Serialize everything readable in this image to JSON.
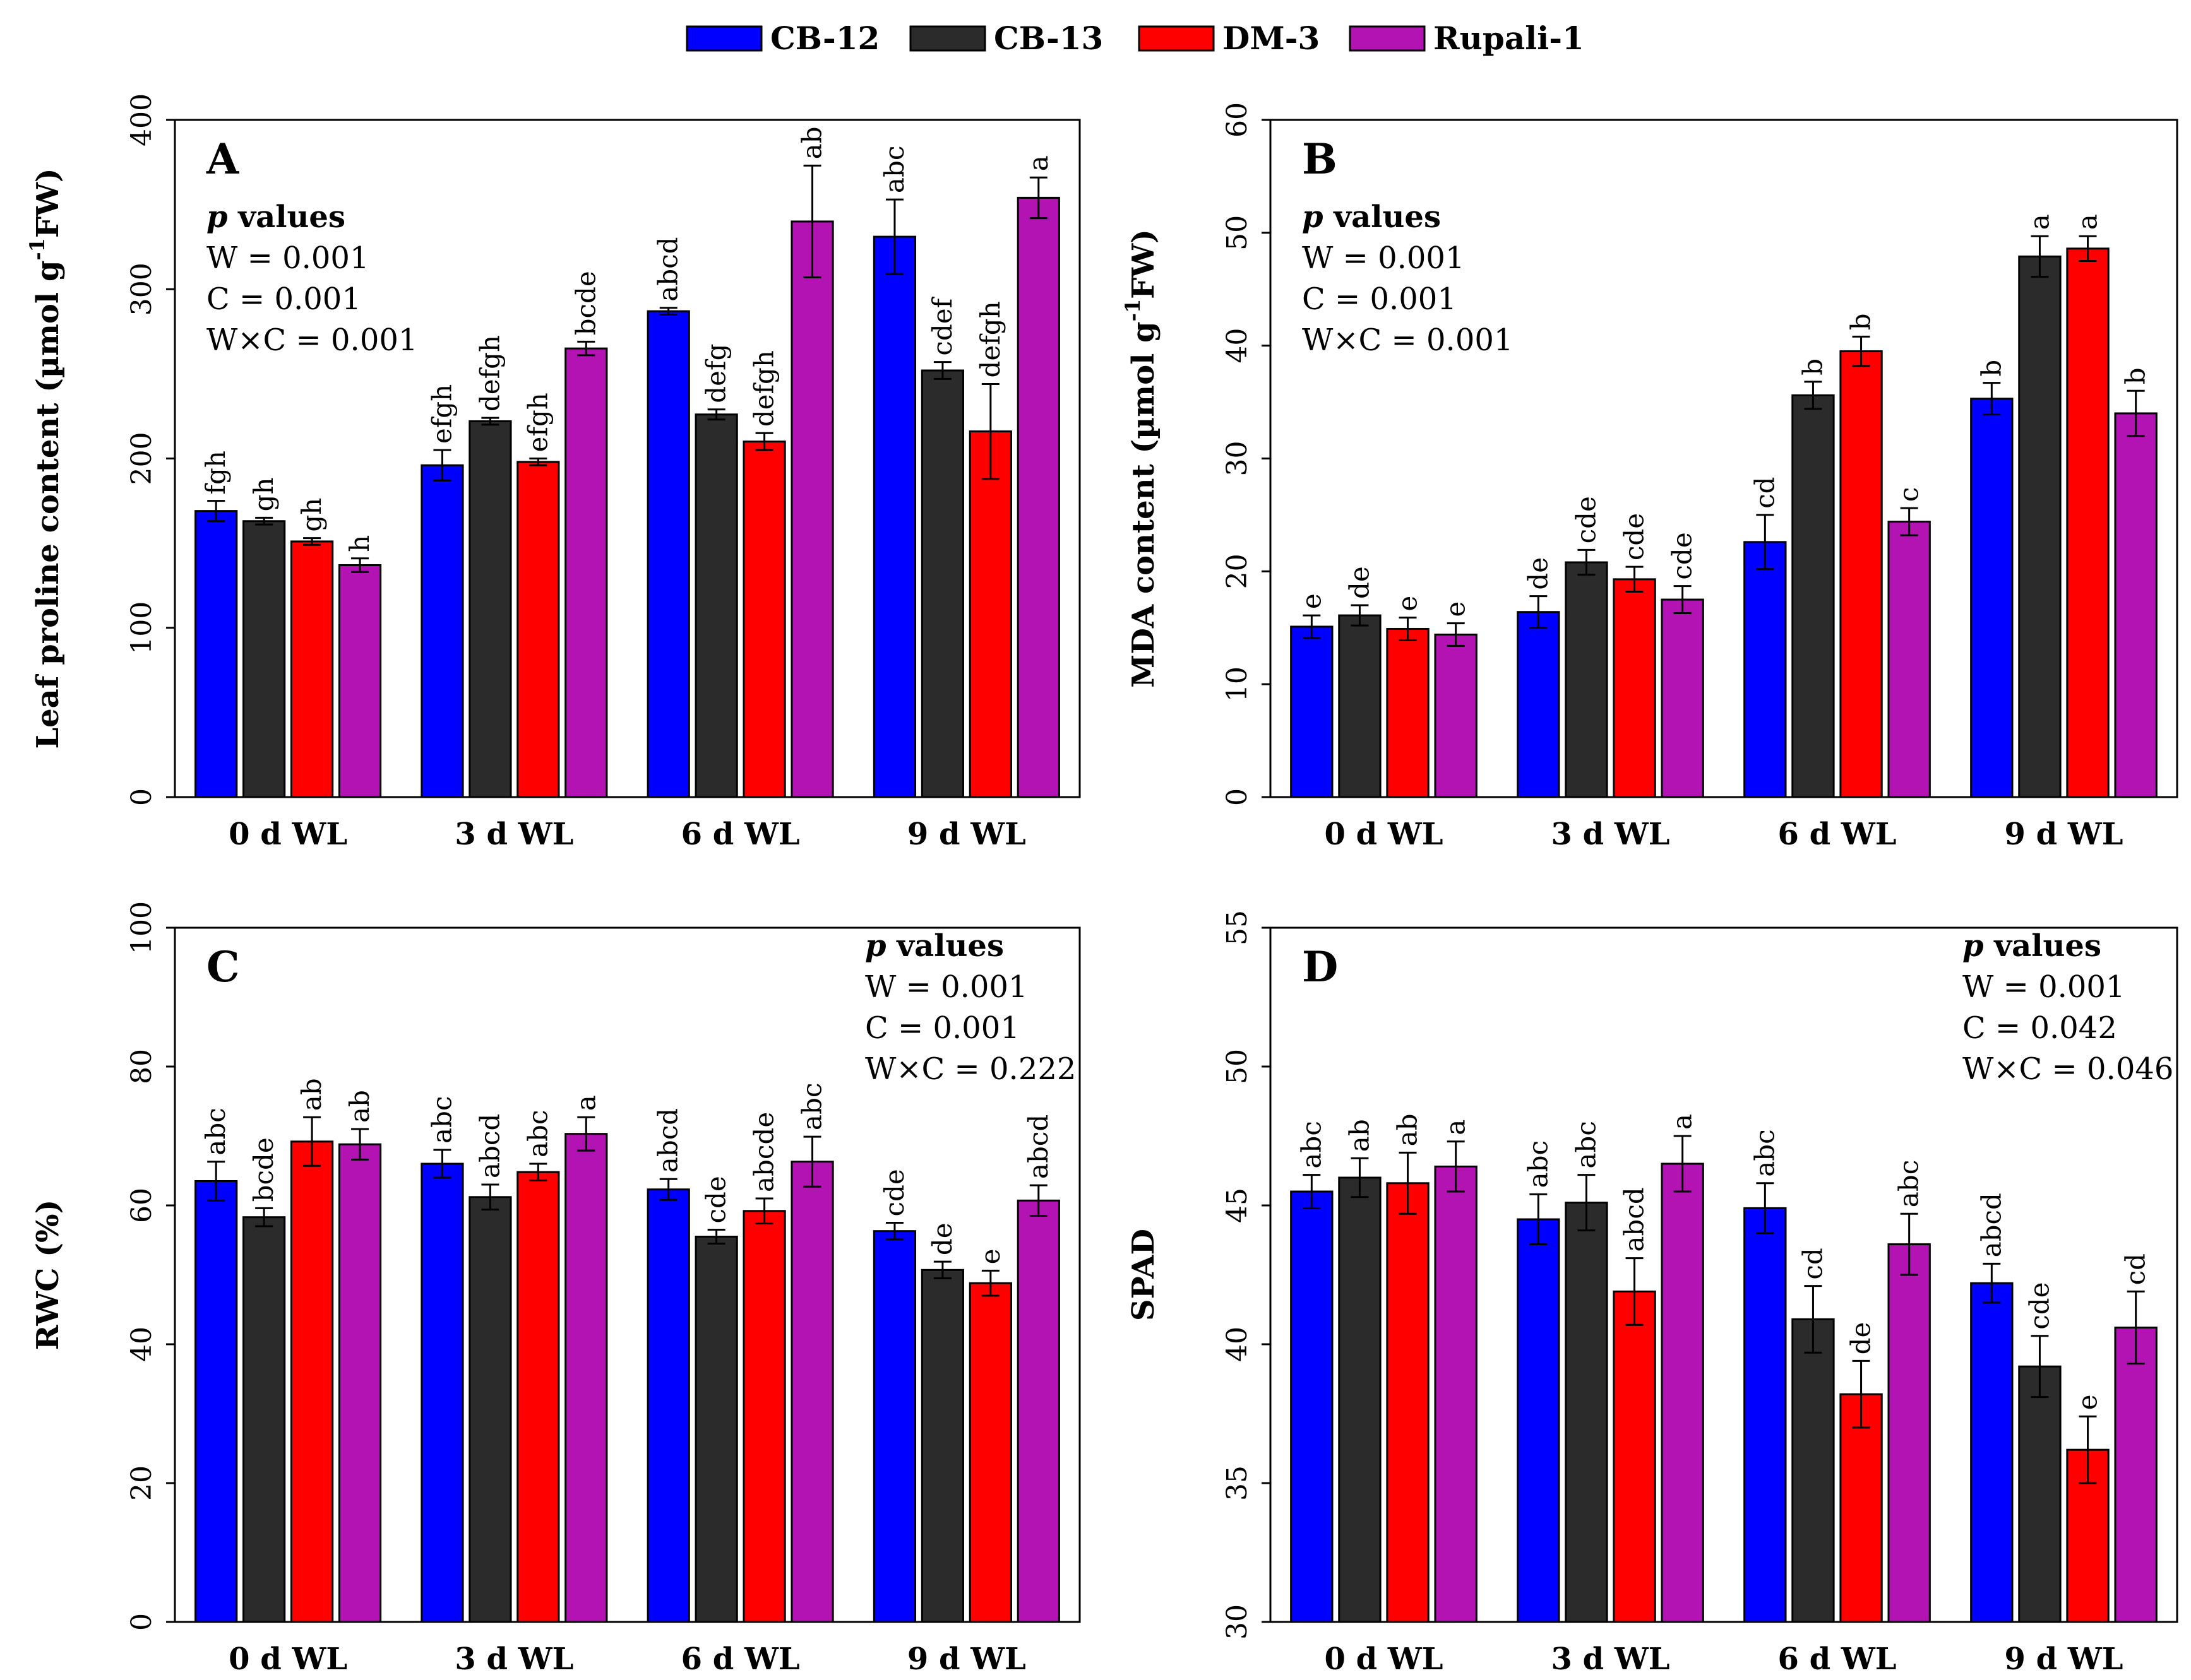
{
  "legend": [
    {
      "name": "CB-12",
      "color": "#0000ff"
    },
    {
      "name": "CB-13",
      "color": "#2b2b2b"
    },
    {
      "name": "DM-3",
      "color": "#ff0000"
    },
    {
      "name": "Rupali-1",
      "color": "#b313b3"
    }
  ],
  "chart_data": [
    {
      "type": "bar",
      "panel": "A",
      "ylabel": "Leaf proline content (µmol g",
      "ylabel_sup": "-1",
      "ylabel_tail": "FW)",
      "ylim": [
        0,
        400
      ],
      "yticks": [
        0,
        100,
        200,
        300,
        400
      ],
      "categories": [
        "0 d WL",
        "3 d WL",
        "6 d WL",
        "9 d WL"
      ],
      "series": [
        {
          "name": "CB-12",
          "values": [
            169,
            196,
            287,
            331
          ],
          "errors": [
            6,
            9,
            2,
            22
          ],
          "letters": [
            "fgh",
            "efgh",
            "abcd",
            "abc"
          ]
        },
        {
          "name": "CB-13",
          "values": [
            163,
            222,
            226,
            252
          ],
          "errors": [
            2,
            2,
            3,
            5
          ],
          "letters": [
            "gh",
            "defgh",
            "defg",
            "cdef"
          ]
        },
        {
          "name": "DM-3",
          "values": [
            151,
            198,
            210,
            216
          ],
          "errors": [
            2,
            2,
            5,
            28
          ],
          "letters": [
            "gh",
            "efgh",
            "defgh",
            "defgh"
          ]
        },
        {
          "name": "Rupali-1",
          "values": [
            137,
            265,
            340,
            354
          ],
          "errors": [
            4,
            4,
            33,
            12
          ],
          "letters": [
            "h",
            "bcde",
            "ab",
            "a"
          ]
        }
      ],
      "stats": {
        "heading_italic": "p",
        "heading_rest": " values",
        "lines": [
          "W = 0.001",
          "C = 0.001",
          "W×C = 0.001"
        ],
        "placement": "top-left"
      }
    },
    {
      "type": "bar",
      "panel": "B",
      "ylabel": "MDA content (µmol g",
      "ylabel_sup": "-1",
      "ylabel_tail": "FW)",
      "ylim": [
        0,
        60
      ],
      "yticks": [
        0,
        10,
        20,
        30,
        40,
        50,
        60
      ],
      "categories": [
        "0 d WL",
        "3 d WL",
        "6 d WL",
        "9 d WL"
      ],
      "series": [
        {
          "name": "CB-12",
          "values": [
            15.1,
            16.4,
            22.6,
            35.3
          ],
          "errors": [
            1.0,
            1.4,
            2.4,
            1.4
          ],
          "letters": [
            "e",
            "de",
            "cd",
            "b"
          ]
        },
        {
          "name": "CB-13",
          "values": [
            16.1,
            20.8,
            35.6,
            47.9
          ],
          "errors": [
            0.9,
            1.1,
            1.2,
            1.8
          ],
          "letters": [
            "de",
            "cde",
            "b",
            "a"
          ]
        },
        {
          "name": "DM-3",
          "values": [
            14.9,
            19.3,
            39.5,
            48.6
          ],
          "errors": [
            1.0,
            1.1,
            1.3,
            1.1
          ],
          "letters": [
            "e",
            "cde",
            "b",
            "a"
          ]
        },
        {
          "name": "Rupali-1",
          "values": [
            14.4,
            17.5,
            24.4,
            34.0
          ],
          "errors": [
            1.0,
            1.2,
            1.2,
            2.0
          ],
          "letters": [
            "e",
            "cde",
            "c",
            "b"
          ]
        }
      ],
      "stats": {
        "heading_italic": "p",
        "heading_rest": " values",
        "lines": [
          "W = 0.001",
          "C = 0.001",
          "W×C = 0.001"
        ],
        "placement": "top-left"
      }
    },
    {
      "type": "bar",
      "panel": "C",
      "ylabel": "RWC (%)",
      "ylabel_sup": "",
      "ylabel_tail": "",
      "ylim": [
        0,
        100
      ],
      "yticks": [
        0,
        20,
        40,
        60,
        80,
        100
      ],
      "categories": [
        "0 d WL",
        "3 d WL",
        "6 d WL",
        "9 d WL"
      ],
      "series": [
        {
          "name": "CB-12",
          "values": [
            63.5,
            66.0,
            62.3,
            56.3
          ],
          "errors": [
            2.8,
            2.0,
            1.5,
            1.2
          ],
          "letters": [
            "abc",
            "abc",
            "abcd",
            "cde"
          ]
        },
        {
          "name": "CB-13",
          "values": [
            58.3,
            61.2,
            55.5,
            50.7
          ],
          "errors": [
            1.3,
            1.8,
            1.0,
            1.2
          ],
          "letters": [
            "bcde",
            "abcd",
            "cde",
            "de"
          ]
        },
        {
          "name": "DM-3",
          "values": [
            69.2,
            64.8,
            59.2,
            48.8
          ],
          "errors": [
            3.5,
            1.2,
            1.8,
            1.8
          ],
          "letters": [
            "ab",
            "abc",
            "abcde",
            "e"
          ]
        },
        {
          "name": "Rupali-1",
          "values": [
            68.8,
            70.3,
            66.3,
            60.7
          ],
          "errors": [
            2.2,
            2.4,
            3.6,
            2.2
          ],
          "letters": [
            "ab",
            "a",
            "abc",
            "abcd"
          ]
        }
      ],
      "stats": {
        "heading_italic": "p",
        "heading_rest": " values",
        "lines": [
          "W = 0.001",
          "C = 0.001",
          "W×C = 0.222"
        ],
        "placement": "top-right"
      }
    },
    {
      "type": "bar",
      "panel": "D",
      "ylabel": "SPAD",
      "ylabel_sup": "",
      "ylabel_tail": "",
      "ylim": [
        30,
        55
      ],
      "yticks": [
        30,
        35,
        40,
        45,
        50,
        55
      ],
      "categories": [
        "0 d WL",
        "3 d WL",
        "6 d WL",
        "9 d WL"
      ],
      "series": [
        {
          "name": "CB-12",
          "values": [
            45.5,
            44.5,
            44.9,
            42.2
          ],
          "errors": [
            0.6,
            0.9,
            0.9,
            0.7
          ],
          "letters": [
            "abc",
            "abc",
            "abc",
            "abcd"
          ]
        },
        {
          "name": "CB-13",
          "values": [
            46.0,
            45.1,
            40.9,
            39.2
          ],
          "errors": [
            0.7,
            1.0,
            1.2,
            1.1
          ],
          "letters": [
            "ab",
            "abc",
            "cd",
            "cde"
          ]
        },
        {
          "name": "DM-3",
          "values": [
            45.8,
            41.9,
            38.2,
            36.2
          ],
          "errors": [
            1.1,
            1.2,
            1.2,
            1.2
          ],
          "letters": [
            "ab",
            "abcd",
            "de",
            "e"
          ]
        },
        {
          "name": "Rupali-1",
          "values": [
            46.4,
            46.5,
            43.6,
            40.6
          ],
          "errors": [
            0.9,
            1.0,
            1.1,
            1.3
          ],
          "letters": [
            "a",
            "a",
            "abc",
            "cd"
          ]
        }
      ],
      "stats": {
        "heading_italic": "p",
        "heading_rest": " values",
        "lines": [
          "W = 0.001",
          "C = 0.042",
          "W×C = 0.046"
        ],
        "placement": "top-right"
      }
    }
  ]
}
